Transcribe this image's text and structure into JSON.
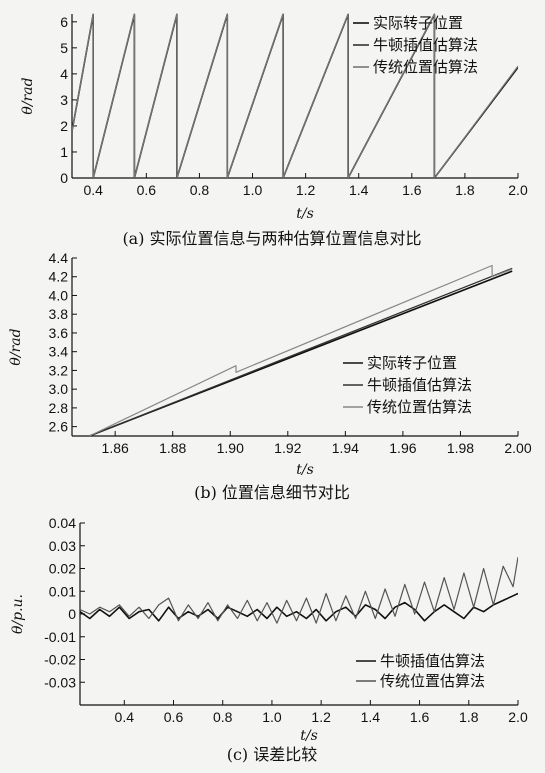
{
  "chart_data": [
    {
      "type": "line",
      "caption": "(a) 实际位置信息与两种估算位置信息对比",
      "xlabel": "t/s",
      "ylabel": "θ/rad",
      "xlim": [
        0.32,
        2.0
      ],
      "ylim": [
        0,
        6.3
      ],
      "xticks": [
        "0.4",
        "0.6",
        "0.8",
        "1.0",
        "1.2",
        "1.4",
        "1.6",
        "1.8",
        "2.0"
      ],
      "yticks": [
        "0",
        "1",
        "2",
        "3",
        "4",
        "5",
        "6"
      ],
      "legend_position": "top-right",
      "series": [
        {
          "name": "实际转子位置",
          "color": "#111111",
          "x": [
            0.32,
            0.4,
            0.4,
            0.555,
            0.555,
            0.715,
            0.715,
            0.905,
            0.905,
            1.115,
            1.115,
            1.36,
            1.36,
            1.685,
            1.685,
            2.0
          ],
          "y": [
            1.8,
            6.28,
            0,
            6.28,
            0,
            6.28,
            0,
            6.28,
            0,
            6.28,
            0,
            6.28,
            0,
            6.28,
            0,
            4.25
          ]
        },
        {
          "name": "牛顿插值估算法",
          "color": "#333333",
          "x": [
            0.32,
            0.4,
            0.4,
            0.555,
            0.555,
            0.715,
            0.715,
            0.905,
            0.905,
            1.115,
            1.115,
            1.36,
            1.36,
            1.685,
            1.685,
            2.0
          ],
          "y": [
            1.8,
            6.28,
            0,
            6.28,
            0,
            6.28,
            0,
            6.28,
            0,
            6.28,
            0,
            6.28,
            0,
            6.28,
            0,
            4.28
          ]
        },
        {
          "name": "传统位置估算法",
          "color": "#777777",
          "x": [
            0.32,
            0.4,
            0.4,
            0.555,
            0.555,
            0.715,
            0.715,
            0.905,
            0.905,
            1.115,
            1.115,
            1.36,
            1.36,
            1.685,
            1.685,
            2.0
          ],
          "y": [
            1.8,
            6.3,
            0,
            6.3,
            0,
            6.3,
            0,
            6.3,
            0,
            6.3,
            0,
            6.3,
            0,
            6.3,
            0,
            4.3
          ]
        }
      ]
    },
    {
      "type": "line",
      "caption": "(b) 位置信息细节对比",
      "xlabel": "t/s",
      "ylabel": "θ/rad",
      "xlim": [
        1.845,
        2.0
      ],
      "ylim": [
        2.5,
        4.4
      ],
      "xticks": [
        "1.86",
        "1.88",
        "1.90",
        "1.92",
        "1.94",
        "1.96",
        "1.98",
        "2.00"
      ],
      "yticks": [
        "2.6",
        "2.8",
        "3.0",
        "3.2",
        "3.4",
        "3.6",
        "3.8",
        "4.0",
        "4.2",
        "4.4"
      ],
      "legend_position": "bottom-right",
      "series": [
        {
          "name": "实际转子位置",
          "color": "#111111",
          "x": [
            1.851,
            1.998
          ],
          "y": [
            2.5,
            4.26
          ]
        },
        {
          "name": "牛顿插值估算法",
          "color": "#333333",
          "x": [
            1.851,
            1.998
          ],
          "y": [
            2.5,
            4.29
          ]
        },
        {
          "name": "传统位置估算法",
          "color": "#888888",
          "x": [
            1.851,
            1.902,
            1.902,
            1.991,
            1.991,
            1.998
          ],
          "y": [
            2.5,
            3.25,
            3.18,
            4.32,
            4.2,
            4.28
          ]
        }
      ]
    },
    {
      "type": "line",
      "caption": "(c) 误差比较",
      "xlabel": "t/s",
      "ylabel": "θ/p.u.",
      "xlim": [
        0.22,
        2.0
      ],
      "ylim": [
        -0.04,
        0.04
      ],
      "xticks": [
        "0.4",
        "0.6",
        "0.8",
        "1.0",
        "1.2",
        "1.4",
        "1.6",
        "1.8",
        "2.0"
      ],
      "yticks": [
        "0.04",
        "0.03",
        "0.02",
        "0.01",
        "0",
        "-0.01",
        "-0.02",
        "-0.03"
      ],
      "legend_position": "bottom-right",
      "series": [
        {
          "name": "牛顿插值估算法",
          "color": "#111111",
          "x": [
            0.22,
            0.26,
            0.3,
            0.34,
            0.38,
            0.42,
            0.46,
            0.5,
            0.54,
            0.58,
            0.62,
            0.66,
            0.7,
            0.74,
            0.78,
            0.82,
            0.86,
            0.9,
            0.94,
            0.98,
            1.02,
            1.06,
            1.1,
            1.14,
            1.18,
            1.22,
            1.26,
            1.3,
            1.34,
            1.38,
            1.42,
            1.46,
            1.5,
            1.54,
            1.58,
            1.62,
            1.66,
            1.7,
            1.74,
            1.78,
            1.82,
            1.86,
            1.9,
            1.94,
            1.98,
            2.0
          ],
          "y": [
            0.001,
            -0.002,
            0.002,
            -0.001,
            0.003,
            -0.002,
            0.001,
            0.002,
            -0.003,
            0.003,
            -0.002,
            0.001,
            -0.001,
            0.002,
            -0.002,
            0.003,
            0.001,
            -0.001,
            0.002,
            -0.002,
            0.003,
            -0.001,
            0.001,
            -0.002,
            0.002,
            -0.003,
            0.001,
            0.003,
            -0.001,
            0.004,
            0.002,
            -0.002,
            0.003,
            0.005,
            0.002,
            -0.003,
            0.001,
            0.004,
            0.001,
            -0.002,
            0.003,
            0.001,
            0.004,
            0.006,
            0.008,
            0.009
          ]
        },
        {
          "name": "传统位置估算法",
          "color": "#555555",
          "x": [
            0.22,
            0.26,
            0.3,
            0.34,
            0.38,
            0.42,
            0.46,
            0.5,
            0.54,
            0.58,
            0.62,
            0.66,
            0.7,
            0.74,
            0.78,
            0.82,
            0.86,
            0.9,
            0.94,
            0.98,
            1.02,
            1.06,
            1.1,
            1.14,
            1.18,
            1.22,
            1.26,
            1.3,
            1.34,
            1.38,
            1.42,
            1.46,
            1.5,
            1.54,
            1.58,
            1.62,
            1.66,
            1.7,
            1.74,
            1.78,
            1.82,
            1.86,
            1.9,
            1.94,
            1.98,
            2.0
          ],
          "y": [
            0.002,
            0.0,
            0.003,
            0.001,
            0.004,
            -0.001,
            0.003,
            -0.002,
            0.004,
            0.007,
            -0.003,
            0.004,
            -0.002,
            0.005,
            -0.003,
            0.004,
            -0.002,
            0.006,
            -0.003,
            0.005,
            -0.004,
            0.006,
            -0.003,
            0.007,
            -0.004,
            0.009,
            -0.003,
            0.008,
            -0.002,
            0.01,
            -0.002,
            0.011,
            -0.001,
            0.013,
            0.0,
            0.014,
            0.001,
            0.016,
            0.002,
            0.018,
            0.003,
            0.02,
            0.004,
            0.021,
            0.012,
            0.025
          ]
        }
      ]
    }
  ]
}
